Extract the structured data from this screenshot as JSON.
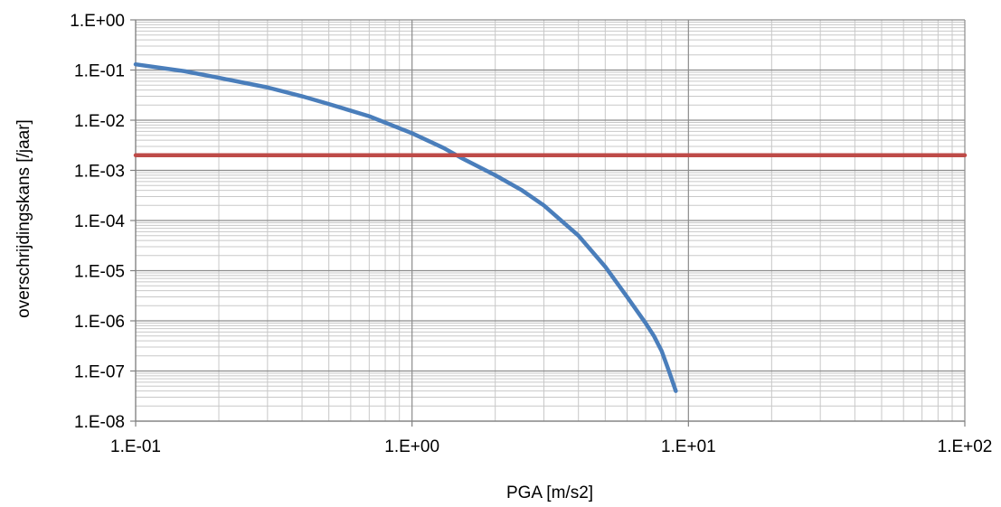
{
  "chart_data": {
    "type": "line",
    "title": "",
    "xlabel": "PGA [m/s2]",
    "ylabel": "overschrijdingskans [/jaar]",
    "x_scale": "log",
    "y_scale": "log",
    "xlim": [
      0.1,
      100
    ],
    "ylim": [
      1e-08,
      1
    ],
    "x_tick_values": [
      0.1,
      1,
      10,
      100
    ],
    "x_tick_labels": [
      "1.E-01",
      "1.E+00",
      "1.E+01",
      "1.E+02"
    ],
    "y_tick_values": [
      1,
      0.1,
      0.01,
      0.001,
      0.0001,
      1e-05,
      1e-06,
      1e-07,
      1e-08
    ],
    "y_tick_labels": [
      "1.E+00",
      "1.E-01",
      "1.E-02",
      "1.E-03",
      "1.E-04",
      "1.E-05",
      "1.E-06",
      "1.E-07",
      "1.E-08"
    ],
    "grid": true,
    "legend": "none",
    "series": [
      {
        "color": "#4a7ebb",
        "x": [
          0.1,
          0.15,
          0.2,
          0.3,
          0.4,
          0.5,
          0.7,
          1.0,
          1.3,
          1.5,
          2.0,
          2.5,
          3.0,
          4.0,
          5.0,
          6.0,
          7.0,
          7.5,
          8.0,
          8.5,
          9.0
        ],
        "y": [
          0.13,
          0.095,
          0.07,
          0.045,
          0.03,
          0.021,
          0.012,
          0.0055,
          0.0028,
          0.0018,
          0.0008,
          0.0004,
          0.0002,
          5e-05,
          1.2e-05,
          3e-06,
          9e-07,
          5e-07,
          2.5e-07,
          1e-07,
          4e-08
        ]
      },
      {
        "color": "#be4b48",
        "x": [
          0.1,
          100
        ],
        "y": [
          0.002,
          0.002
        ]
      }
    ]
  }
}
